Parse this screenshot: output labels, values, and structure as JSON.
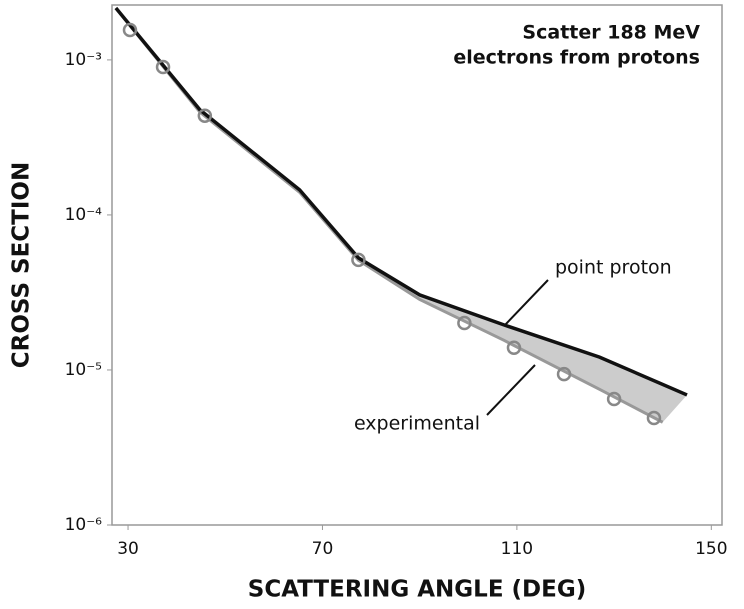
{
  "chart_data": {
    "type": "line",
    "title": "Scatter 188 MeV",
    "subtitle": "electrons from protons",
    "x_label": "SCATTERING ANGLE (DEG)",
    "y_label": "CROSS SECTION",
    "xlim": [
      26.7,
      152.2
    ],
    "xticks": [
      30,
      70,
      110,
      150
    ],
    "ylim": [
      1e-06,
      0.00226
    ],
    "log_y": true,
    "yticks": [
      {
        "value": 0.001,
        "label": "10⁻³"
      },
      {
        "value": 0.0001,
        "label": "10⁻⁴"
      },
      {
        "value": 1e-05,
        "label": "10⁻⁵"
      },
      {
        "value": 1e-06,
        "label": "10⁻⁶"
      }
    ],
    "series": [
      {
        "name": "point proton",
        "color": "#111111",
        "x": [
          27.5,
          44.8,
          65.3,
          77.4,
          90,
          107.4,
          127,
          145
        ],
        "values": [
          0.00216,
          0.000476,
          0.000145,
          5.28e-05,
          3.05e-05,
          1.95e-05,
          1.21e-05,
          6.9e-06
        ]
      },
      {
        "name": "experimental",
        "color": "#999999",
        "x": [
          27.5,
          44.8,
          65.3,
          77.4,
          90,
          107.4,
          127,
          140
        ],
        "values": [
          0.00216,
          0.00046,
          0.00014,
          5.1e-05,
          2.85e-05,
          1.55e-05,
          7.5e-06,
          4.6e-06
        ]
      }
    ],
    "points_x": [
      30.4,
      37.2,
      45.8,
      77.4,
      99.2,
      109.4,
      119.7,
      130,
      138.2
    ],
    "points_y": [
      0.00156,
      0.0009,
      0.000436,
      5.13e-05,
      2.01e-05,
      1.39e-05,
      9.4e-06,
      6.5e-06,
      4.9e-06
    ],
    "points_color": "#888888",
    "fill_between": "#cccccc"
  }
}
